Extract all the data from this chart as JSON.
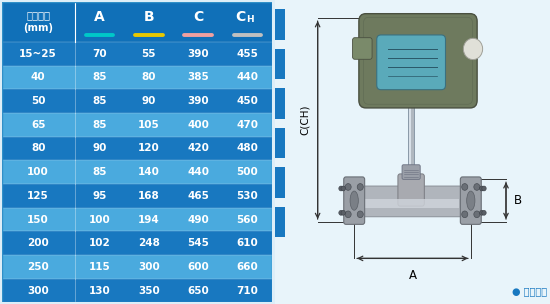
{
  "header_col0": "仪表口径\n(mm)",
  "col_labels": [
    "A",
    "B",
    "C",
    "CH"
  ],
  "underline_colors": [
    "#00c8c8",
    "#e8c800",
    "#f0a0a0",
    "#c0c0c0"
  ],
  "rows": [
    [
      "15~25",
      "70",
      "55",
      "390",
      "455"
    ],
    [
      "40",
      "85",
      "80",
      "385",
      "440"
    ],
    [
      "50",
      "85",
      "90",
      "390",
      "450"
    ],
    [
      "65",
      "85",
      "105",
      "400",
      "470"
    ],
    [
      "80",
      "90",
      "120",
      "420",
      "480"
    ],
    [
      "100",
      "85",
      "140",
      "440",
      "500"
    ],
    [
      "125",
      "95",
      "168",
      "465",
      "530"
    ],
    [
      "150",
      "100",
      "194",
      "490",
      "560"
    ],
    [
      "200",
      "102",
      "248",
      "545",
      "610"
    ],
    [
      "250",
      "115",
      "300",
      "600",
      "660"
    ],
    [
      "300",
      "130",
      "350",
      "650",
      "710"
    ]
  ],
  "dark_row_bg": "#1878c0",
  "light_row_bg": "#4aaade",
  "header_bg": "#1070b8",
  "text_white": "#ffffff",
  "fig_bg": "#ddeef8",
  "right_bg": "#e8f4fa",
  "note_text": "● 常规仪表",
  "note_color": "#1878c0",
  "dim_line_color": "#333333",
  "label_C_CH": "C(CH)",
  "label_B": "B",
  "label_A": "A"
}
